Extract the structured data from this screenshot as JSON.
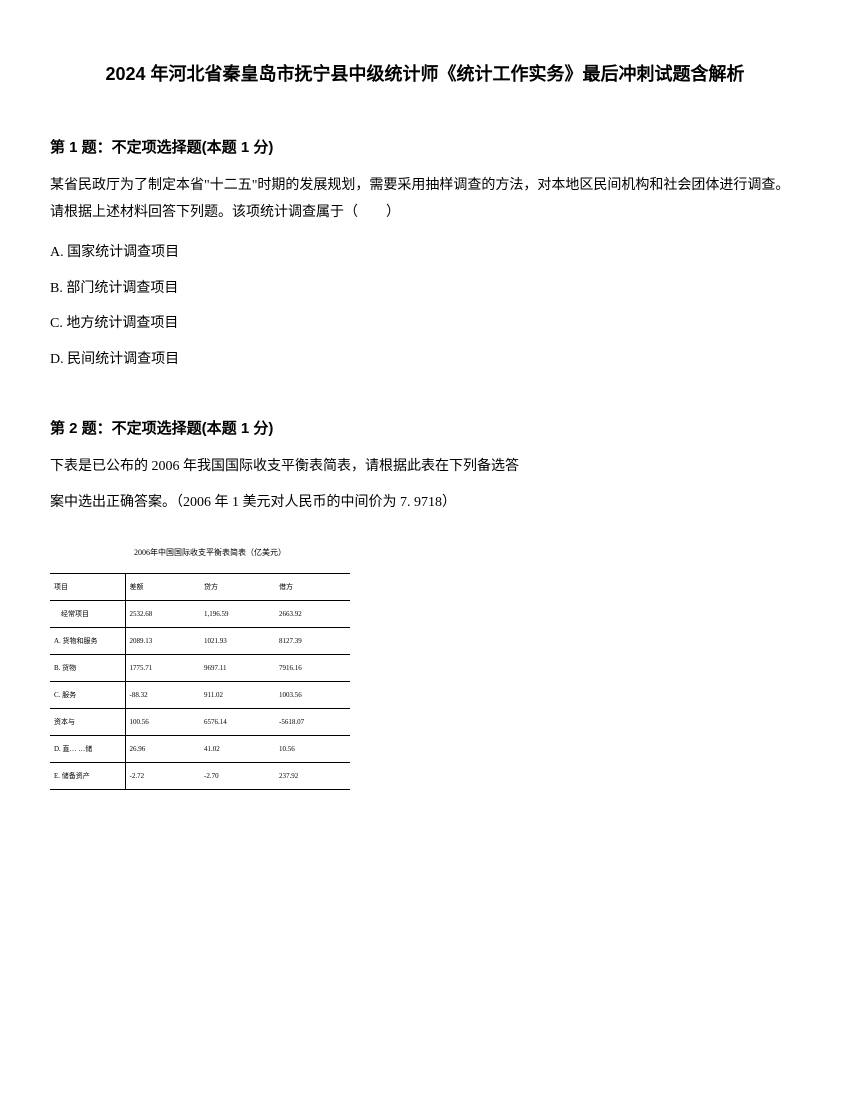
{
  "title": "2024 年河北省秦皇岛市抚宁县中级统计师《统计工作实务》最后冲刺试题含解析",
  "q1": {
    "header": "第 1 题：不定项选择题(本题 1 分)",
    "text": "某省民政厅为了制定本省\"十二五\"时期的发展规划，需要采用抽样调查的方法，对本地区民间机构和社会团体进行调查。 请根据上述材料回答下列题。该项统计调查属于（　　）",
    "optionA": "A. 国家统计调查项目",
    "optionB": "B. 部门统计调查项目",
    "optionC": "C. 地方统计调查项目",
    "optionD": "D. 民间统计调查项目"
  },
  "q2": {
    "header": "第 2 题：不定项选择题(本题 1 分)",
    "text1": "下表是已公布的 2006 年我国国际收支平衡表简表，请根据此表在下列备选答",
    "text2": "案中选出正确答案。（2006 年 1 美元对人民币的中间价为 7. 9718）"
  },
  "table": {
    "title": "2006年中国国际收支平衡表简表（亿美元）",
    "headers": [
      "项目",
      "差额",
      "贷方",
      "借方"
    ],
    "rows": [
      [
        "　经常项目",
        "2532.68",
        "1,196.59",
        "2663.92"
      ],
      [
        "A. 货物和服务",
        "2089.13",
        "1021.93",
        "8127.39"
      ],
      [
        "B. 货物",
        "1775.71",
        "9697.11",
        "7916.16"
      ],
      [
        "C. 服务",
        "-88.32",
        "911.02",
        "1003.56"
      ],
      [
        "资本与",
        "100.56",
        "6576.14",
        "-5618.07"
      ],
      [
        "D. 直… …储",
        "26.96",
        "41.02",
        "10.56"
      ],
      [
        "E. 储备资产",
        "-2.72",
        "-2.70",
        "237.92"
      ]
    ]
  }
}
